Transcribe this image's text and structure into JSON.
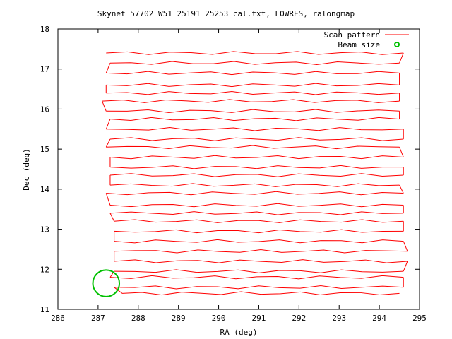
{
  "chart_data": {
    "type": "line",
    "title": "Skynet_57702_W51_25191_25253_cal.txt, LOWRES, ralongmap",
    "xlabel": "RA (deg)",
    "ylabel": "Dec (deg)",
    "xlim": [
      286,
      295
    ],
    "ylim": [
      11,
      18
    ],
    "xticks": [
      "286",
      "287",
      "288",
      "289",
      "290",
      "291",
      "292",
      "293",
      "294",
      "295"
    ],
    "yticks": [
      "11",
      "12",
      "13",
      "14",
      "15",
      "16",
      "17",
      "18"
    ],
    "grid": false,
    "legend_position": "top-right",
    "series": [
      {
        "name": "Scan pattern",
        "color": "#ff0000",
        "style": "line"
      },
      {
        "name": "Beam size",
        "color": "#00c000",
        "style": "circle"
      }
    ],
    "scan_rows": [
      {
        "dec": 17.4,
        "start": 287.2,
        "end": 294.6
      },
      {
        "dec": 17.15,
        "start": 287.3,
        "end": 294.5
      },
      {
        "dec": 16.9,
        "start": 287.2,
        "end": 294.5
      },
      {
        "dec": 16.6,
        "start": 287.2,
        "end": 294.5
      },
      {
        "dec": 16.4,
        "start": 287.2,
        "end": 294.5
      },
      {
        "dec": 16.2,
        "start": 287.1,
        "end": 294.5
      },
      {
        "dec": 15.95,
        "start": 287.2,
        "end": 294.5
      },
      {
        "dec": 15.75,
        "start": 287.3,
        "end": 294.5
      },
      {
        "dec": 15.5,
        "start": 287.2,
        "end": 294.6
      },
      {
        "dec": 15.25,
        "start": 287.3,
        "end": 294.6
      },
      {
        "dec": 15.05,
        "start": 287.2,
        "end": 294.5
      },
      {
        "dec": 14.8,
        "start": 287.3,
        "end": 294.6
      },
      {
        "dec": 14.55,
        "start": 287.3,
        "end": 294.6
      },
      {
        "dec": 14.35,
        "start": 287.3,
        "end": 294.6
      },
      {
        "dec": 14.1,
        "start": 287.3,
        "end": 294.5
      },
      {
        "dec": 13.9,
        "start": 287.2,
        "end": 294.6
      },
      {
        "dec": 13.6,
        "start": 287.3,
        "end": 294.6
      },
      {
        "dec": 13.4,
        "start": 287.3,
        "end": 294.6
      },
      {
        "dec": 13.2,
        "start": 287.4,
        "end": 294.6
      },
      {
        "dec": 12.95,
        "start": 287.4,
        "end": 294.6
      },
      {
        "dec": 12.7,
        "start": 287.4,
        "end": 294.6
      },
      {
        "dec": 12.45,
        "start": 287.4,
        "end": 294.7
      },
      {
        "dec": 12.2,
        "start": 287.4,
        "end": 294.7
      },
      {
        "dec": 11.95,
        "start": 287.4,
        "end": 294.6
      },
      {
        "dec": 11.8,
        "start": 287.3,
        "end": 294.6
      },
      {
        "dec": 11.55,
        "start": 287.4,
        "end": 294.6
      },
      {
        "dec": 11.4,
        "start": 287.6,
        "end": 294.5
      }
    ],
    "beam": {
      "ra": 287.2,
      "dec": 11.65,
      "radius_deg": 0.33
    }
  }
}
